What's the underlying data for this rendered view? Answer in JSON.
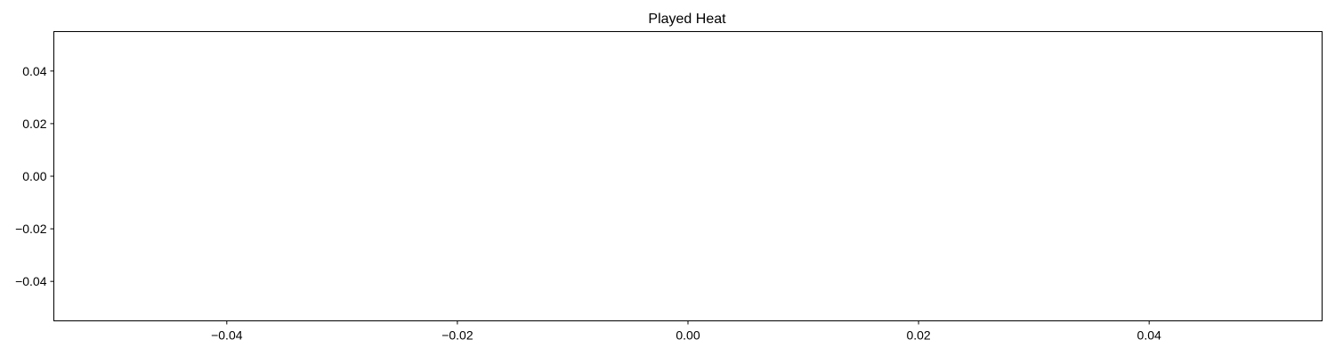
{
  "chart_data": {
    "type": "line",
    "title": "Played Heat",
    "xlabel": "",
    "ylabel": "",
    "xlim": [
      -0.055,
      0.055
    ],
    "ylim": [
      -0.055,
      0.055
    ],
    "x_ticks": [
      -0.04,
      -0.02,
      0.0,
      0.02,
      0.04
    ],
    "x_tick_labels": [
      "−0.04",
      "−0.02",
      "0.00",
      "0.02",
      "0.04"
    ],
    "y_ticks": [
      0.04,
      0.02,
      0.0,
      -0.02,
      -0.04
    ],
    "y_tick_labels": [
      "0.04",
      "0.02",
      "0.00",
      "−0.02",
      "−0.04"
    ],
    "grid": false,
    "series": []
  }
}
